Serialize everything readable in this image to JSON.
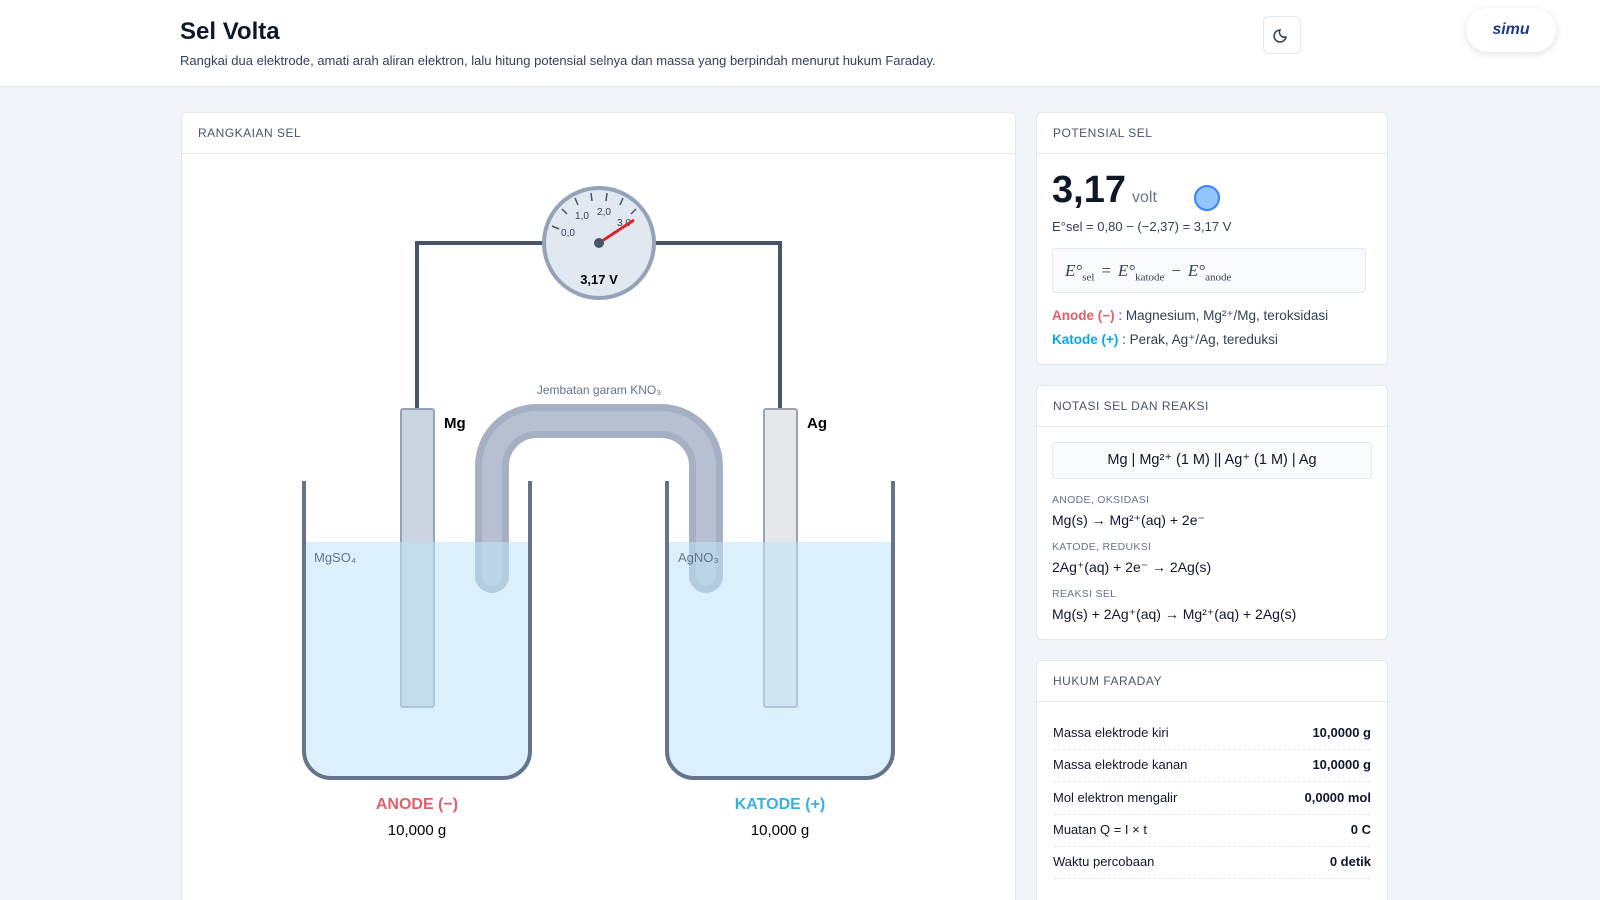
{
  "header": {
    "title": "Sel Volta",
    "subtitle": "Rangkai dua elektrode, amati arah aliran elektron, lalu hitung potensial selnya dan massa yang berpindah menurut hukum Faraday.",
    "logo": "simu"
  },
  "circuit": {
    "title": "RANGKAIAN SEL",
    "gauge": {
      "ticks": [
        "0,0",
        "1,0",
        "2,0",
        "3,0"
      ],
      "reading": "3,17 V"
    },
    "salt_bridge": "Jembatan garam KNO₃",
    "left": {
      "electrode": "Mg",
      "solution": "MgSO₄",
      "role": "ANODE (−)",
      "mass": "10,000 g"
    },
    "right": {
      "electrode": "Ag",
      "solution": "AgNO₃",
      "role": "KATODE (+)",
      "mass": "10,000 g"
    }
  },
  "potential": {
    "title": "POTENSIAL SEL",
    "value": "3,17",
    "unit": "volt",
    "calc": "E°sel = 0,80 − (−2,37) = 3,17 V",
    "formula": [
      {
        "t": "E°",
        "sub": "sel"
      },
      {
        "t": "="
      },
      {
        "t": "E°",
        "sub": "katode"
      },
      {
        "t": "−"
      },
      {
        "t": "E°",
        "sub": "anode"
      }
    ],
    "anode": {
      "label": "Anode (−)",
      "desc": ": Magnesium, Mg²⁺/Mg, teroksidasi"
    },
    "cathode": {
      "label": "Katode (+)",
      "desc": ": Perak, Ag⁺/Ag, tereduksi"
    }
  },
  "notation": {
    "title": "NOTASI SEL DAN REAKSI",
    "cell": "Mg | Mg²⁺ (1 M) || Ag⁺ (1 M) | Ag",
    "reactions": [
      {
        "label": "ANODE, OKSIDASI",
        "equation": "Mg(s) → Mg²⁺(aq) + 2e⁻"
      },
      {
        "label": "KATODE, REDUKSI",
        "equation": "2Ag⁺(aq) + 2e⁻ → 2Ag(s)"
      },
      {
        "label": "REAKSI SEL",
        "equation": "Mg(s) + 2Ag⁺(aq) → Mg²⁺(aq) + 2Ag(s)"
      }
    ]
  },
  "faraday": {
    "title": "HUKUM FARADAY",
    "rows": [
      [
        "Massa elektrode kiri",
        "10,0000 g"
      ],
      [
        "Massa elektrode kanan",
        "10,0000 g"
      ],
      [
        "Mol elektron mengalir",
        "0,0000 mol"
      ],
      [
        "Muatan Q = I × t",
        "0 C"
      ],
      [
        "Waktu percobaan",
        "0 detik"
      ]
    ]
  }
}
